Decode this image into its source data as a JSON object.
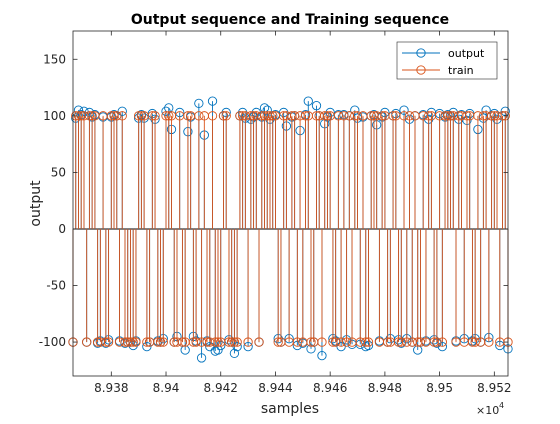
{
  "chart_data": {
    "type": "stem",
    "title": "Output sequence and Training sequence",
    "xlabel": "samples",
    "ylabel": "output",
    "x_exponent_label": "×10",
    "x_exponent_power": "4",
    "xlim": [
      89366,
      89525
    ],
    "ylim": [
      -130,
      175
    ],
    "x_ticks": [
      89380,
      89400,
      89420,
      89440,
      89460,
      89480,
      89500,
      89520
    ],
    "x_tick_labels": [
      "8.938",
      "8.94",
      "8.942",
      "8.944",
      "8.946",
      "8.948",
      "8.95",
      "8.952"
    ],
    "y_ticks": [
      -100,
      -50,
      0,
      50,
      100,
      150
    ],
    "y_tick_labels": [
      "-100",
      "-50",
      "0",
      "50",
      "100",
      "150"
    ],
    "legend_position": "top-right",
    "x_start": 89366,
    "series": [
      {
        "name": "output",
        "color": "#0072BD",
        "values": [
          -100,
          98,
          105,
          101,
          104,
          -100,
          103,
          99,
          101,
          -101,
          -99,
          99,
          -101,
          -98,
          99,
          101,
          100,
          -99,
          104,
          -101,
          -100,
          -100,
          -103,
          -99,
          98,
          101,
          98,
          -104,
          -100,
          102,
          97,
          -99,
          -100,
          -97,
          104,
          107,
          88,
          -100,
          -95,
          103,
          -100,
          -107,
          86,
          99,
          -95,
          -99,
          111,
          -114,
          83,
          -99,
          -104,
          113,
          -108,
          -107,
          -103,
          100,
          103,
          -98,
          -100,
          -110,
          -104,
          100,
          103,
          98,
          -104,
          97,
          99,
          103,
          -100,
          99,
          107,
          105,
          97,
          100,
          101,
          -97,
          -100,
          103,
          91,
          -97,
          99,
          100,
          -103,
          87,
          -101,
          101,
          113,
          -106,
          -100,
          109,
          100,
          -112,
          93,
          99,
          103,
          -97,
          -99,
          101,
          -104,
          101,
          -98,
          100,
          -102,
          105,
          98,
          -102,
          99,
          -104,
          -103,
          100,
          101,
          92,
          -99,
          99,
          103,
          -100,
          -97,
          100,
          102,
          -98,
          -101,
          105,
          -97,
          97,
          -100,
          100,
          -107,
          -100,
          101,
          -99,
          97,
          103,
          -98,
          -101,
          102,
          -104,
          99,
          101,
          100,
          103,
          -99,
          97,
          101,
          -97,
          96,
          102,
          -99,
          -97,
          88,
          -100,
          98,
          105,
          -96,
          100,
          102,
          97,
          -103,
          100,
          104,
          -106
        ]
      },
      {
        "name": "train",
        "color": "#D95319",
        "values": [
          -100,
          100,
          100,
          100,
          100,
          -100,
          100,
          100,
          100,
          -100,
          -100,
          100,
          -100,
          -100,
          100,
          100,
          100,
          -100,
          100,
          -100,
          -100,
          -100,
          -100,
          -100,
          100,
          100,
          100,
          -100,
          -100,
          100,
          100,
          -100,
          -100,
          -100,
          100,
          100,
          100,
          -100,
          -100,
          100,
          -100,
          -100,
          100,
          100,
          -100,
          -100,
          100,
          -100,
          100,
          -100,
          -100,
          100,
          -100,
          -100,
          -100,
          100,
          100,
          -100,
          -100,
          -100,
          -100,
          100,
          100,
          100,
          -100,
          100,
          100,
          100,
          -100,
          100,
          100,
          100,
          100,
          100,
          100,
          -100,
          -100,
          100,
          100,
          -100,
          100,
          100,
          -100,
          100,
          -100,
          100,
          100,
          -100,
          -100,
          100,
          100,
          -100,
          100,
          100,
          100,
          -100,
          -100,
          100,
          -100,
          100,
          -100,
          100,
          -100,
          100,
          100,
          -100,
          100,
          -100,
          -100,
          100,
          100,
          100,
          -100,
          100,
          100,
          -100,
          -100,
          100,
          100,
          -100,
          -100,
          100,
          -100,
          100,
          -100,
          100,
          -100,
          -100,
          100,
          -100,
          100,
          100,
          -100,
          -100,
          100,
          -100,
          100,
          100,
          100,
          100,
          -100,
          100,
          100,
          -100,
          100,
          100,
          -100,
          -100,
          100,
          -100,
          100,
          100,
          -100,
          100,
          100,
          100,
          -100,
          100,
          100,
          -100
        ]
      }
    ]
  }
}
